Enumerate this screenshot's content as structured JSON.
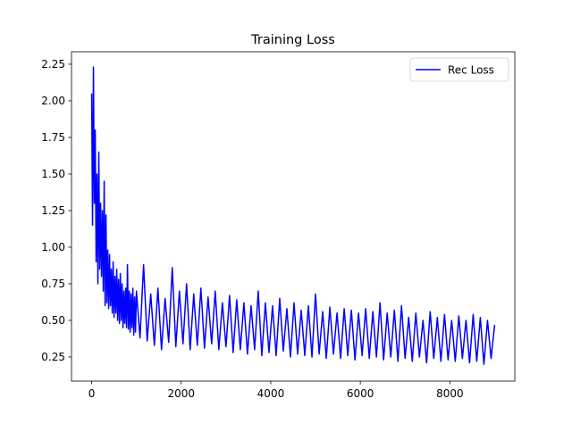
{
  "chart_data": {
    "type": "line",
    "title": "Training Loss",
    "x": [
      0,
      20,
      40,
      60,
      80,
      100,
      120,
      140,
      160,
      180,
      200,
      220,
      240,
      260,
      280,
      300,
      320,
      340,
      360,
      380,
      400,
      420,
      440,
      460,
      480,
      500,
      520,
      540,
      560,
      580,
      600,
      620,
      640,
      660,
      680,
      700,
      720,
      740,
      760,
      780,
      800,
      820,
      840,
      860,
      880,
      900,
      920,
      940,
      960,
      980,
      1000,
      1080,
      1160,
      1240,
      1320,
      1400,
      1480,
      1560,
      1640,
      1720,
      1800,
      1880,
      1960,
      2040,
      2120,
      2200,
      2280,
      2360,
      2440,
      2520,
      2600,
      2680,
      2760,
      2840,
      2920,
      3000,
      3080,
      3160,
      3240,
      3320,
      3400,
      3480,
      3560,
      3640,
      3720,
      3800,
      3880,
      3960,
      4040,
      4120,
      4200,
      4280,
      4360,
      4440,
      4520,
      4600,
      4680,
      4760,
      4840,
      4920,
      5000,
      5080,
      5160,
      5240,
      5320,
      5400,
      5480,
      5560,
      5640,
      5720,
      5800,
      5880,
      5960,
      6040,
      6120,
      6200,
      6280,
      6360,
      6440,
      6520,
      6600,
      6680,
      6760,
      6840,
      6920,
      7000,
      7080,
      7160,
      7240,
      7320,
      7400,
      7480,
      7560,
      7640,
      7720,
      7800,
      7880,
      7960,
      8040,
      8120,
      8200,
      8280,
      8360,
      8440,
      8520,
      8600,
      8680,
      8760,
      8840,
      8920,
      9000
    ],
    "series": [
      {
        "name": "Rec Loss",
        "color": "#0000ff",
        "values": [
          2.05,
          1.15,
          2.23,
          1.3,
          1.8,
          0.9,
          1.5,
          0.75,
          1.65,
          0.85,
          1.3,
          0.8,
          1.25,
          0.7,
          1.45,
          0.6,
          1.22,
          0.62,
          0.98,
          0.58,
          0.95,
          0.6,
          0.85,
          0.55,
          0.9,
          0.52,
          0.8,
          0.55,
          0.85,
          0.5,
          0.78,
          0.48,
          0.82,
          0.5,
          0.75,
          0.45,
          0.7,
          0.48,
          0.72,
          0.45,
          0.88,
          0.44,
          0.7,
          0.42,
          0.68,
          0.45,
          0.72,
          0.4,
          0.66,
          0.42,
          0.7,
          0.38,
          0.88,
          0.36,
          0.68,
          0.33,
          0.72,
          0.3,
          0.65,
          0.35,
          0.86,
          0.32,
          0.7,
          0.34,
          0.75,
          0.3,
          0.68,
          0.33,
          0.72,
          0.31,
          0.66,
          0.34,
          0.7,
          0.3,
          0.62,
          0.32,
          0.67,
          0.28,
          0.64,
          0.3,
          0.62,
          0.27,
          0.6,
          0.3,
          0.7,
          0.26,
          0.62,
          0.28,
          0.6,
          0.26,
          0.65,
          0.29,
          0.58,
          0.25,
          0.62,
          0.27,
          0.57,
          0.26,
          0.6,
          0.25,
          0.68,
          0.27,
          0.56,
          0.24,
          0.59,
          0.27,
          0.55,
          0.24,
          0.58,
          0.26,
          0.57,
          0.23,
          0.55,
          0.26,
          0.58,
          0.24,
          0.56,
          0.25,
          0.62,
          0.23,
          0.55,
          0.25,
          0.57,
          0.22,
          0.6,
          0.24,
          0.52,
          0.22,
          0.55,
          0.25,
          0.5,
          0.21,
          0.56,
          0.24,
          0.52,
          0.22,
          0.54,
          0.23,
          0.5,
          0.22,
          0.53,
          0.24,
          0.5,
          0.21,
          0.54,
          0.22,
          0.52,
          0.2,
          0.5,
          0.24,
          0.47
        ]
      }
    ],
    "xlim": [
      -450,
      9450
    ],
    "xticks": [
      0,
      2000,
      4000,
      6000,
      8000
    ],
    "ylim": [
      0.085,
      2.335
    ],
    "yticks": [
      0.25,
      {
        "value": 0.5,
        "label": "0.50"
      },
      0.75,
      {
        "value": 1,
        "label": "1.00"
      },
      1.25,
      {
        "value": 1.5,
        "label": "1.50"
      },
      1.75,
      {
        "value": 2,
        "label": "2.00"
      },
      2.25
    ],
    "legend": "upper right"
  }
}
